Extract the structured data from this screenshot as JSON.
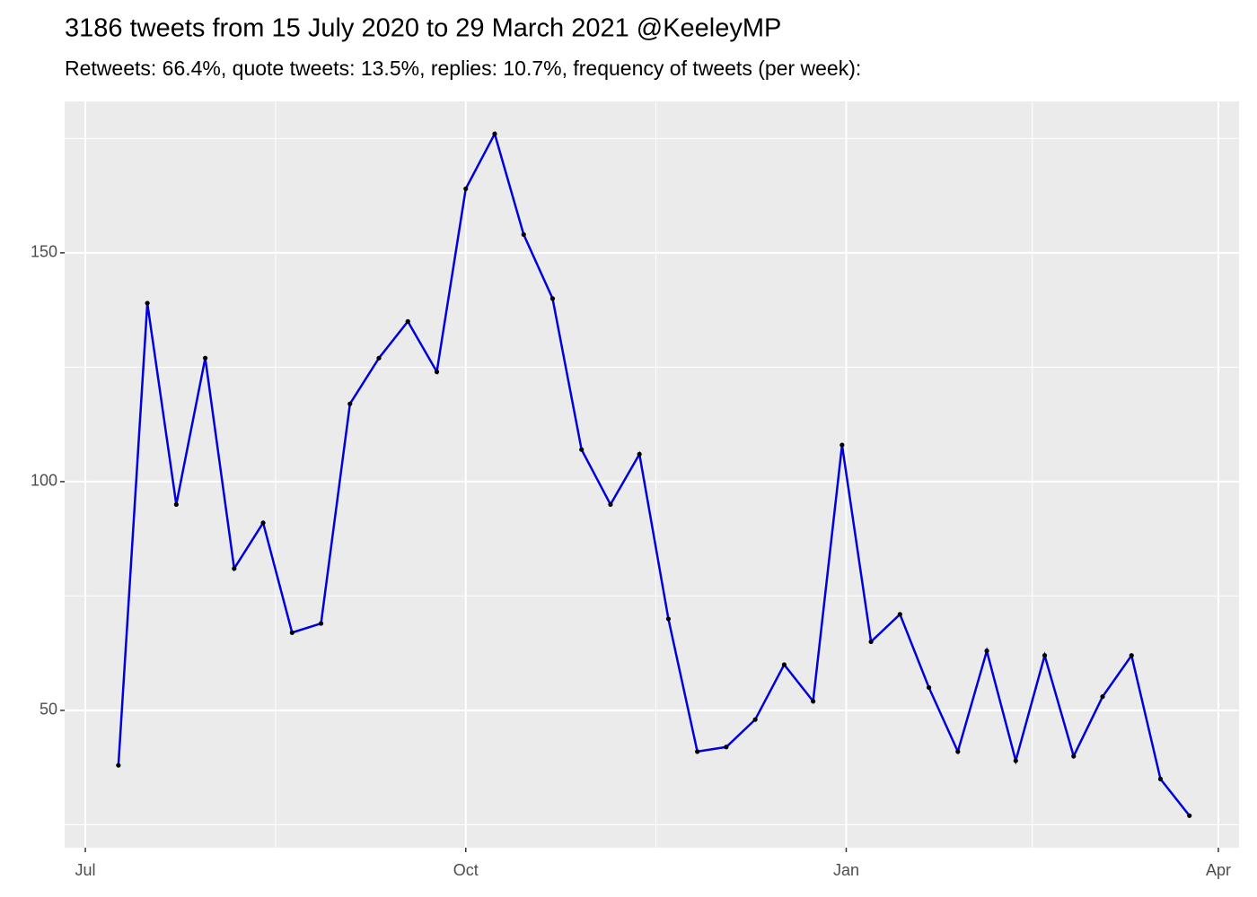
{
  "chart_data": {
    "type": "line",
    "title": "3186 tweets from 15 July 2020 to 29 March 2021 @KeeleyMP",
    "subtitle": "Retweets: 66.4%, quote tweets: 13.5%, replies: 10.7%, frequency of tweets (per week):",
    "x": [
      "2020-07-09",
      "2020-07-16",
      "2020-07-23",
      "2020-07-30",
      "2020-08-06",
      "2020-08-13",
      "2020-08-20",
      "2020-08-27",
      "2020-09-03",
      "2020-09-10",
      "2020-09-17",
      "2020-09-24",
      "2020-10-01",
      "2020-10-08",
      "2020-10-15",
      "2020-10-22",
      "2020-10-29",
      "2020-11-05",
      "2020-11-12",
      "2020-11-19",
      "2020-11-26",
      "2020-12-03",
      "2020-12-10",
      "2020-12-17",
      "2020-12-24",
      "2020-12-31",
      "2021-01-07",
      "2021-01-14",
      "2021-01-21",
      "2021-01-28",
      "2021-02-04",
      "2021-02-11",
      "2021-02-18",
      "2021-02-25",
      "2021-03-04",
      "2021-03-11",
      "2021-03-18",
      "2021-03-25"
    ],
    "series": [
      {
        "color": "#0000dd",
        "marker_color": "#000000",
        "values": [
          38,
          139,
          95,
          127,
          81,
          91,
          67,
          69,
          117,
          127,
          135,
          124,
          164,
          176,
          154,
          140,
          107,
          95,
          106,
          70,
          41,
          42,
          48,
          60,
          52,
          108,
          65,
          71,
          55,
          41,
          63,
          39,
          62,
          40,
          53,
          62,
          35,
          27
        ]
      }
    ],
    "xlim": [
      "2020-06-26",
      "2021-04-06"
    ],
    "xticks": [
      {
        "value": "2020-07-01",
        "label": "Jul"
      },
      {
        "value": "2020-10-01",
        "label": "Oct"
      },
      {
        "value": "2021-01-01",
        "label": "Jan"
      },
      {
        "value": "2021-04-01",
        "label": "Apr"
      }
    ],
    "ylim": [
      20,
      183.1
    ],
    "yticks": [
      50,
      100,
      150
    ],
    "grid": true
  }
}
